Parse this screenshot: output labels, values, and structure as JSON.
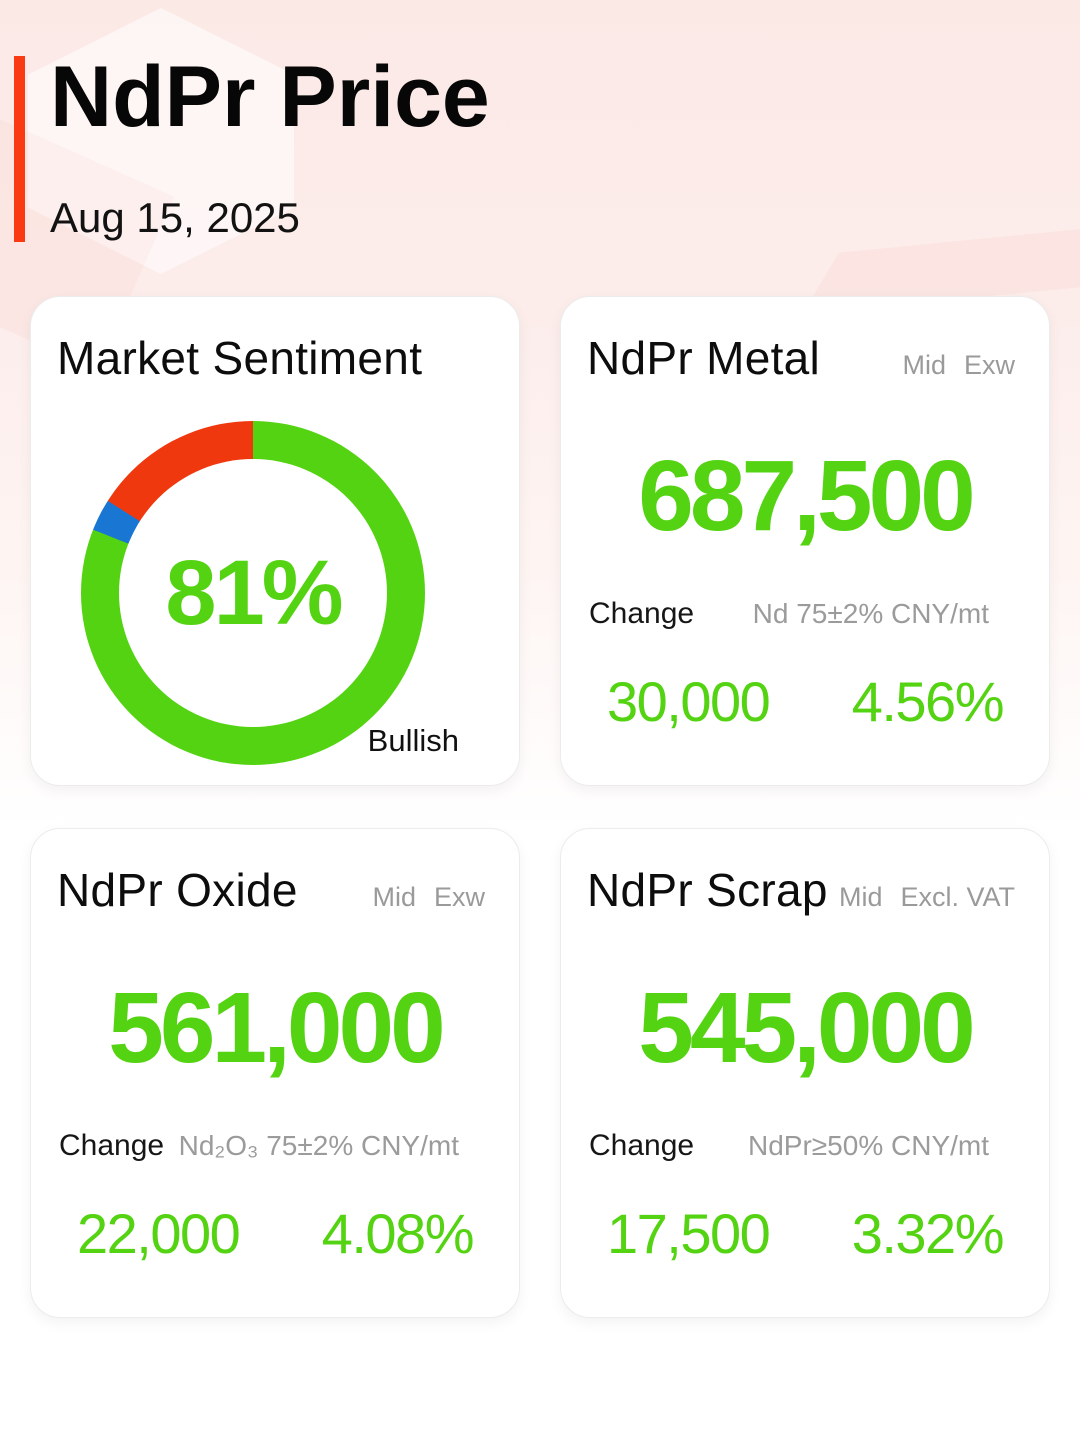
{
  "header": {
    "title": "NdPr Price",
    "date": "Aug 15, 2025"
  },
  "sentiment": {
    "title": "Market Sentiment",
    "percent_label": "81%",
    "caption": "Bullish"
  },
  "cards": [
    {
      "title": "NdPr Metal",
      "tag_mid": "Mid",
      "tag_term": "Exw",
      "price": "687,500",
      "change_label": "Change",
      "unit": "Nd 75±2% CNY/mt",
      "change_value": "30,000",
      "change_percent": "4.56%"
    },
    {
      "title": "NdPr Oxide",
      "tag_mid": "Mid",
      "tag_term": "Exw",
      "price": "561,000",
      "change_label": "Change",
      "unit": "Nd₂O₃ 75±2% CNY/mt",
      "change_value": "22,000",
      "change_percent": "4.08%"
    },
    {
      "title": "NdPr Scrap",
      "tag_mid": "Mid",
      "tag_term": "Excl. VAT",
      "price": "545,000",
      "change_label": "Change",
      "unit": "NdPr≥50% CNY/mt",
      "change_value": "17,500",
      "change_percent": "3.32%"
    }
  ],
  "colors": {
    "accent_red": "#fa3a13",
    "positive_green": "#54d312",
    "neutral_blue": "#1976d2",
    "bearish_red": "#f0380e",
    "label_gray": "#9b9b9b"
  },
  "chart_data": {
    "type": "pie",
    "donut": true,
    "title": "Market Sentiment",
    "center_label": "81%",
    "start_angle_deg": 0,
    "direction": "clockwise",
    "segments": [
      {
        "label": "Bullish",
        "value": 81,
        "color": "#54d312"
      },
      {
        "label": "",
        "value": 3,
        "color": "#1976d2"
      },
      {
        "label": "",
        "value": 16,
        "color": "#f0380e"
      }
    ]
  }
}
